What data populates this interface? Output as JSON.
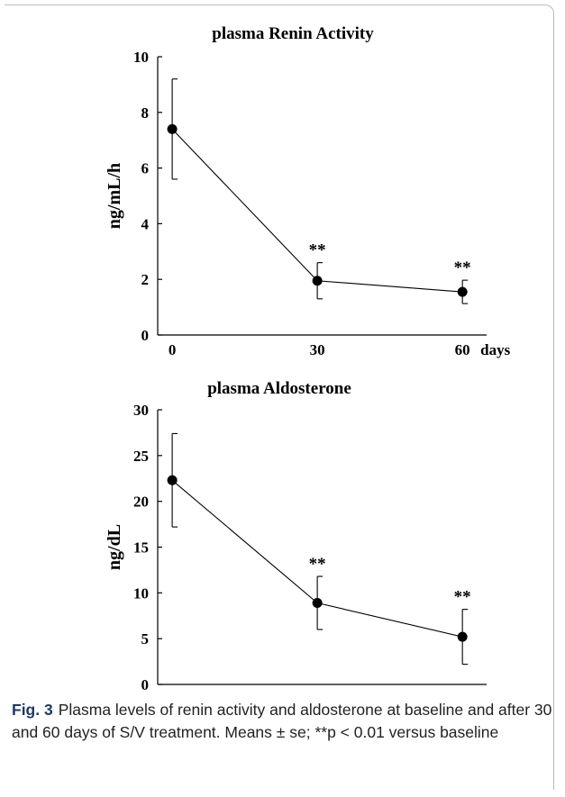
{
  "chart_data": [
    {
      "type": "line",
      "title": "plasma Renin Activity",
      "ylabel": "ng/mL/h",
      "xlabel": "days",
      "x": [
        0,
        30,
        60
      ],
      "xticks": [
        "0",
        "30",
        "60"
      ],
      "xlim": [
        -3,
        65
      ],
      "ylim": [
        0,
        10
      ],
      "yticks": [
        "0",
        "2",
        "4",
        "6",
        "8",
        "10"
      ],
      "series": [
        {
          "values": [
            7.4,
            1.95,
            1.55
          ],
          "errors": [
            1.8,
            0.65,
            0.42
          ]
        }
      ],
      "annotations": [
        "",
        "**",
        "**"
      ]
    },
    {
      "type": "line",
      "title": "plasma Aldosterone",
      "ylabel": "ng/dL",
      "xlabel": "days",
      "x": [
        0,
        30,
        60
      ],
      "xticks": [
        "0",
        "30",
        "60"
      ],
      "xlim": [
        -3,
        65
      ],
      "ylim": [
        0,
        30
      ],
      "yticks": [
        "0",
        "5",
        "10",
        "15",
        "20",
        "25",
        "30"
      ],
      "series": [
        {
          "values": [
            22.3,
            8.9,
            5.2
          ],
          "errors": [
            5.1,
            2.9,
            3.0
          ]
        }
      ],
      "annotations": [
        "",
        "**",
        "**"
      ]
    }
  ],
  "caption": {
    "label": "Fig. 3",
    "text": "Plasma levels of renin activity and aldosterone at baseline and after 30 and 60 days of S/V treatment. Means ± se; **p < 0.01 versus baseline"
  }
}
